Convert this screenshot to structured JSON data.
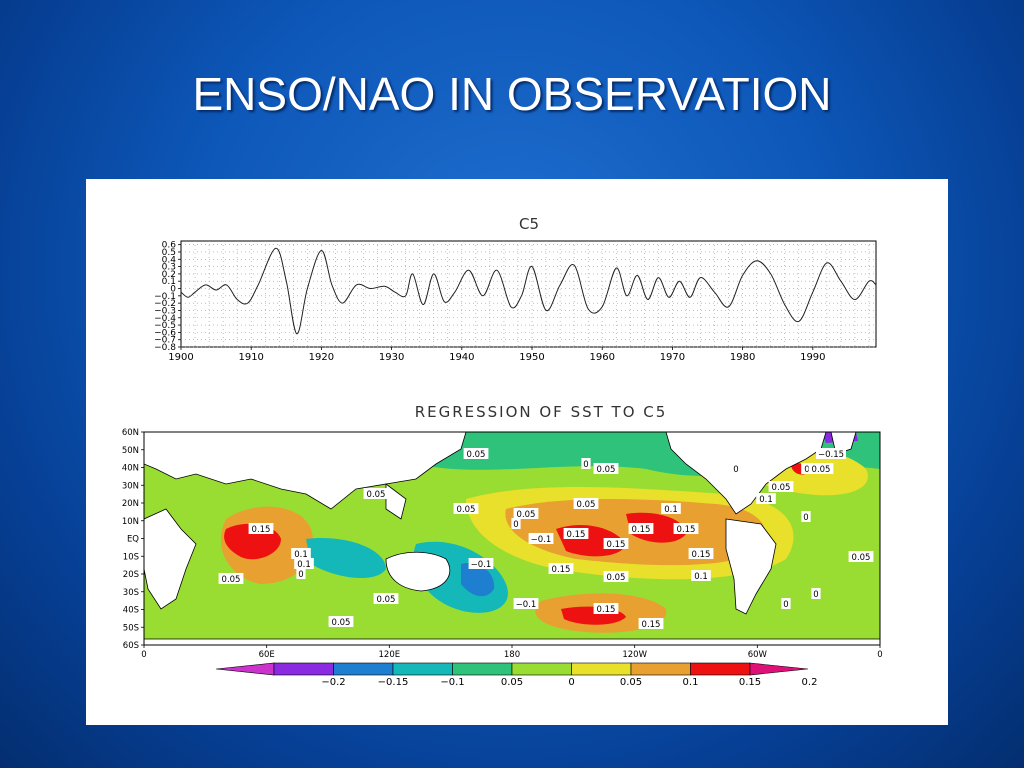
{
  "slide": {
    "title": "ENSO/NAO IN OBSERVATION"
  },
  "colors": {
    "background": "#0d57b8",
    "panel": "#ffffff"
  },
  "chart_data": [
    {
      "type": "line",
      "title": "C5",
      "xlim": [
        1900,
        1999
      ],
      "ylim": [
        -0.8,
        0.65
      ],
      "grid": true,
      "x_ticks": [
        1900,
        1910,
        1920,
        1930,
        1940,
        1950,
        1960,
        1970,
        1980,
        1990
      ],
      "x_tick_labels": [
        "1900",
        "1910",
        "1920",
        "1930",
        "1940",
        "1950",
        "1960",
        "1970",
        "1980",
        "1990"
      ],
      "y_ticks": [
        0.6,
        0.5,
        0.4,
        0.3,
        0.2,
        0.1,
        0,
        -0.1,
        -0.2,
        -0.3,
        -0.4,
        -0.5,
        -0.6,
        -0.7,
        -0.8
      ],
      "y_tick_labels": [
        "0.6",
        "0.5",
        "0.4",
        "0.3",
        "0.2",
        "0.1",
        "0",
        "−0.1",
        "−0.2",
        "−0.3",
        "−0.4",
        "−0.5",
        "−0.6",
        "−0.7",
        "−0.8"
      ],
      "series": [
        {
          "x": [
            1900,
            1901,
            1902,
            1903.5,
            1905,
            1906.5,
            1908,
            1909.5,
            1911,
            1913.5,
            1915,
            1916.5,
            1918,
            1920,
            1921.5,
            1923,
            1925,
            1927,
            1929,
            1930.5,
            1932,
            1933,
            1934.5,
            1936,
            1937.5,
            1939,
            1941,
            1943,
            1945,
            1947,
            1948.5,
            1950,
            1952,
            1954,
            1956,
            1958,
            1960,
            1962,
            1963.5,
            1965,
            1966.5,
            1968,
            1969.5,
            1971,
            1972.5,
            1974,
            1976,
            1978,
            1980,
            1982,
            1984,
            1986,
            1988,
            1990,
            1992,
            1994,
            1996,
            1998,
            1999
          ],
          "y": [
            -0.05,
            -0.12,
            -0.05,
            0.05,
            -0.02,
            0.05,
            -0.15,
            -0.2,
            0.05,
            0.55,
            0.1,
            -0.62,
            0.0,
            0.52,
            0.05,
            -0.2,
            0.05,
            0.0,
            0.03,
            -0.05,
            -0.1,
            0.2,
            -0.22,
            0.2,
            -0.18,
            -0.05,
            0.25,
            -0.1,
            0.25,
            -0.25,
            -0.1,
            0.3,
            -0.3,
            0.05,
            0.32,
            -0.28,
            -0.25,
            0.28,
            -0.1,
            0.18,
            -0.15,
            0.15,
            -0.12,
            0.1,
            -0.12,
            0.15,
            -0.05,
            -0.25,
            0.18,
            0.38,
            0.2,
            -0.22,
            -0.45,
            -0.05,
            0.35,
            0.1,
            -0.15,
            0.1,
            0.05
          ]
        }
      ]
    },
    {
      "type": "heatmap",
      "title": "REGRESSION OF SST TO C5",
      "x_tick_labels": [
        "0",
        "60E",
        "120E",
        "180",
        "120W",
        "60W",
        "0"
      ],
      "y_tick_labels": [
        "60N",
        "50N",
        "40N",
        "30N",
        "20N",
        "10N",
        "EQ",
        "10S",
        "20S",
        "30S",
        "40S",
        "50S",
        "60S"
      ],
      "contour_labels": [
        "0.15",
        "0.15",
        "0.15",
        "0.15",
        "0.15",
        "0.15",
        "0.15",
        "0.15",
        "0.15",
        "0.1",
        "0.1",
        "0.1",
        "0.1",
        "0.1",
        "0.1",
        "−0.1",
        "−0.1",
        "−0.15",
        "−0.1",
        "0.05",
        "0.05",
        "0.05",
        "0.05",
        "0.05",
        "0.05",
        "0.05",
        "0.05",
        "0.05",
        "0.05",
        "0.05",
        "0.05",
        "0.05",
        "0",
        "0",
        "0",
        "0",
        "0",
        "0",
        "0"
      ],
      "colorbar": {
        "labels": [
          "−0.2",
          "−0.15",
          "−0.1",
          "0.05",
          "0",
          "0.05",
          "0.1",
          "0.15",
          "0.2"
        ],
        "colors": [
          "#cc33cc",
          "#8a2be2",
          "#1e7fd0",
          "#15b8b8",
          "#2ec27a",
          "#99dd33",
          "#e8e02a",
          "#e8a030",
          "#ee1111",
          "#dd1177"
        ]
      }
    }
  ]
}
